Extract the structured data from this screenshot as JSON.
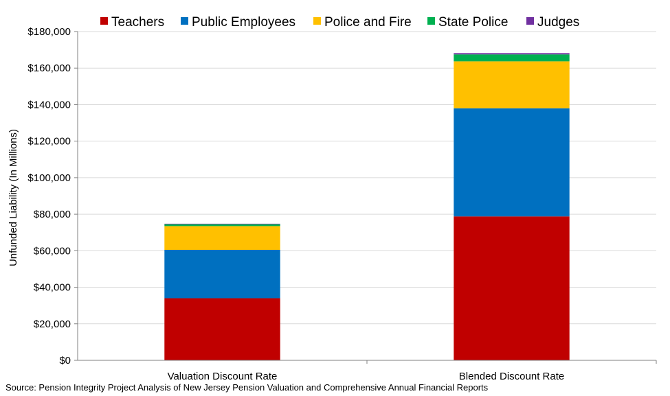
{
  "chart_data": {
    "type": "bar",
    "stacked": true,
    "categories": [
      "Valuation Discount Rate",
      "Blended Discount Rate"
    ],
    "series": [
      {
        "name": "Teachers",
        "color": "#c00000",
        "values": [
          34000,
          78800
        ]
      },
      {
        "name": "Public Employees",
        "color": "#0070c0",
        "values": [
          26500,
          59200
        ]
      },
      {
        "name": "Police and Fire",
        "color": "#ffc000",
        "values": [
          13000,
          25700
        ]
      },
      {
        "name": "State Police",
        "color": "#00b050",
        "values": [
          1000,
          3800
        ]
      },
      {
        "name": "Judges",
        "color": "#7030a0",
        "values": [
          300,
          700
        ]
      }
    ],
    "title": "",
    "xlabel": "",
    "ylabel": "Unfunded Liability (In Millions)",
    "ylim": [
      0,
      180000
    ],
    "yticks": [
      0,
      20000,
      40000,
      60000,
      80000,
      100000,
      120000,
      140000,
      160000,
      180000
    ],
    "ytick_labels": [
      "$0",
      "$20,000",
      "$40,000",
      "$60,000",
      "$80,000",
      "$100,000",
      "$120,000",
      "$140,000",
      "$160,000",
      "$180,000"
    ],
    "grid": true,
    "legend_position": "top"
  },
  "source_note": "Source: Pension Integrity Project Analysis of New Jersey Pension Valuation and Comprehensive Annual Financial Reports"
}
